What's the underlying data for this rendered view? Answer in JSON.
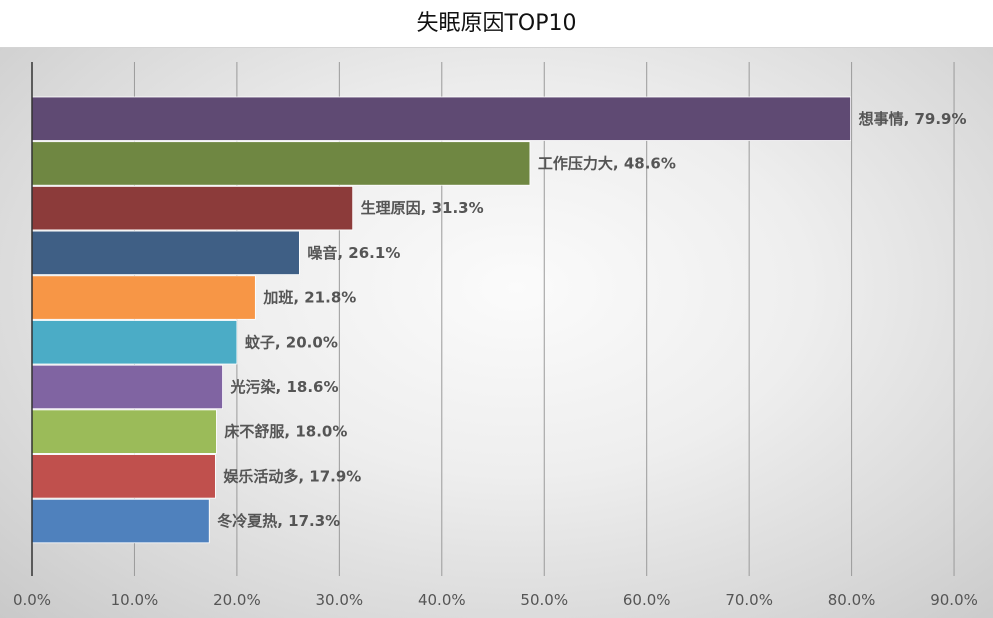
{
  "chart_data": {
    "type": "bar",
    "orientation": "horizontal",
    "title": "失眠原因TOP10",
    "categories": [
      "想事情",
      "工作压力大",
      "生理原因",
      "噪音",
      "加班",
      "蚊子",
      "光污染",
      "床不舒服",
      "娱乐活动多",
      "冬冷夏热"
    ],
    "values": [
      79.9,
      48.6,
      31.3,
      26.1,
      21.8,
      20.0,
      18.6,
      18.0,
      17.9,
      17.3
    ],
    "data_labels": [
      "想事情, 79.9%",
      "工作压力大, 48.6%",
      "生理原因, 31.3%",
      "噪音, 26.1%",
      "加班, 21.8%",
      "蚊子, 20.0%",
      "光污染, 18.6%",
      "床不舒服, 18.0%",
      "娱乐活动多, 17.9%",
      "冬冷夏热, 17.3%"
    ],
    "colors": [
      "#5f4a73",
      "#6f8742",
      "#8c3b3a",
      "#3f5f85",
      "#f79646",
      "#4bacc6",
      "#8064a2",
      "#9bbb59",
      "#c0504d",
      "#4f81bd"
    ],
    "xlim": [
      0,
      90
    ],
    "xticks": [
      0,
      10,
      20,
      30,
      40,
      50,
      60,
      70,
      80,
      90
    ],
    "xtick_labels": [
      "0.0%",
      "10.0%",
      "20.0%",
      "30.0%",
      "40.0%",
      "50.0%",
      "60.0%",
      "70.0%",
      "80.0%",
      "90.0%"
    ],
    "grid": true,
    "legend": "none"
  }
}
